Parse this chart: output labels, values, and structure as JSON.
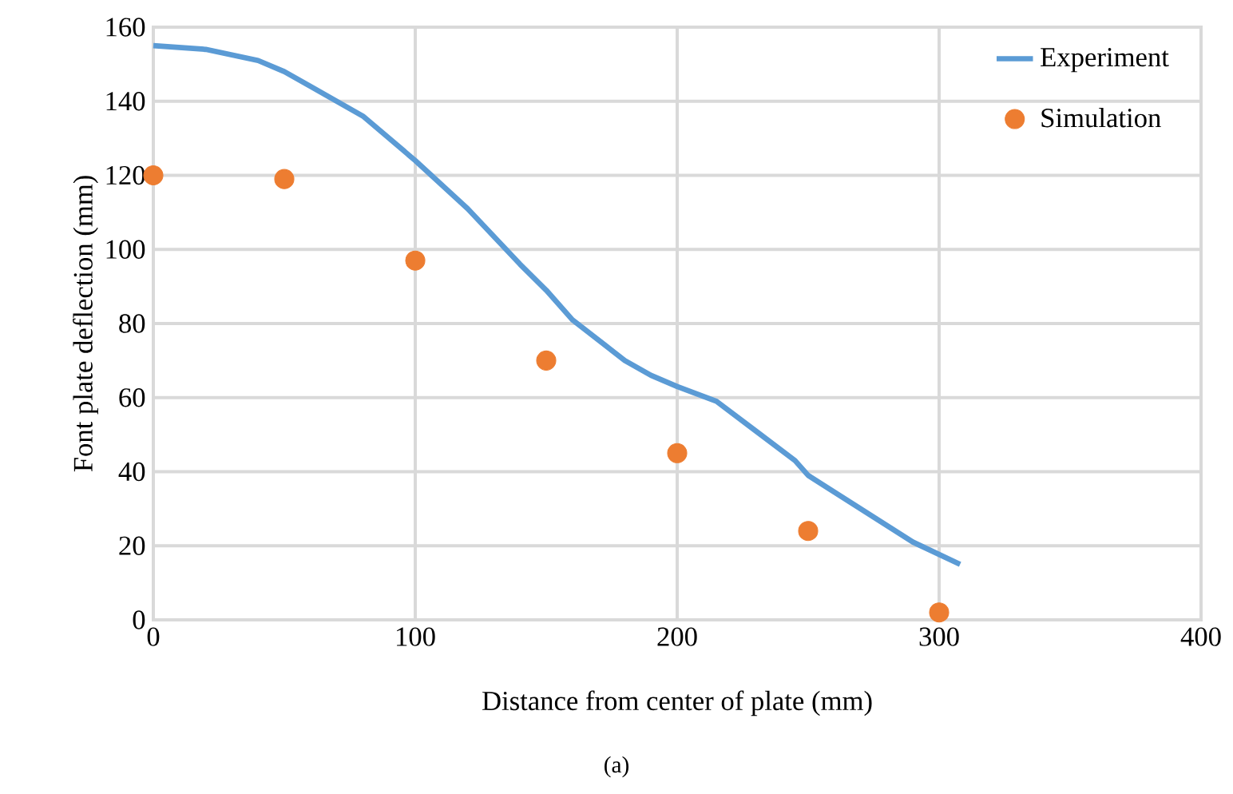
{
  "chart_data": {
    "type": "line",
    "xlabel": "Distance from center of plate (mm)",
    "ylabel": "Font plate deflection (mm)",
    "annotations": [
      "(a)"
    ],
    "xlim": [
      0,
      400
    ],
    "xticks": [
      0,
      100,
      200,
      300,
      400
    ],
    "ylim": [
      0,
      160
    ],
    "yticks": [
      0,
      20,
      40,
      60,
      80,
      100,
      120,
      140,
      160
    ],
    "grid": true,
    "legend": "top right",
    "series": [
      {
        "name": "Experiment",
        "color": "#5b9bd5",
        "marker": "none",
        "x": [
          0,
          20,
          40,
          50,
          60,
          80,
          100,
          120,
          140,
          150,
          160,
          180,
          190,
          200,
          215,
          230,
          245,
          250,
          270,
          290,
          308
        ],
        "values": [
          155,
          154,
          151,
          148,
          144,
          136,
          124,
          111,
          96,
          89,
          81,
          70,
          66,
          63,
          59,
          51,
          43,
          39,
          30,
          21,
          15
        ]
      },
      {
        "name": "Simulation",
        "type": "scatter",
        "color": "#ed7d31",
        "marker": "circle",
        "x": [
          0,
          50,
          100,
          150,
          200,
          250,
          300
        ],
        "values": [
          120,
          119,
          97,
          70,
          45,
          24,
          2
        ]
      }
    ]
  }
}
